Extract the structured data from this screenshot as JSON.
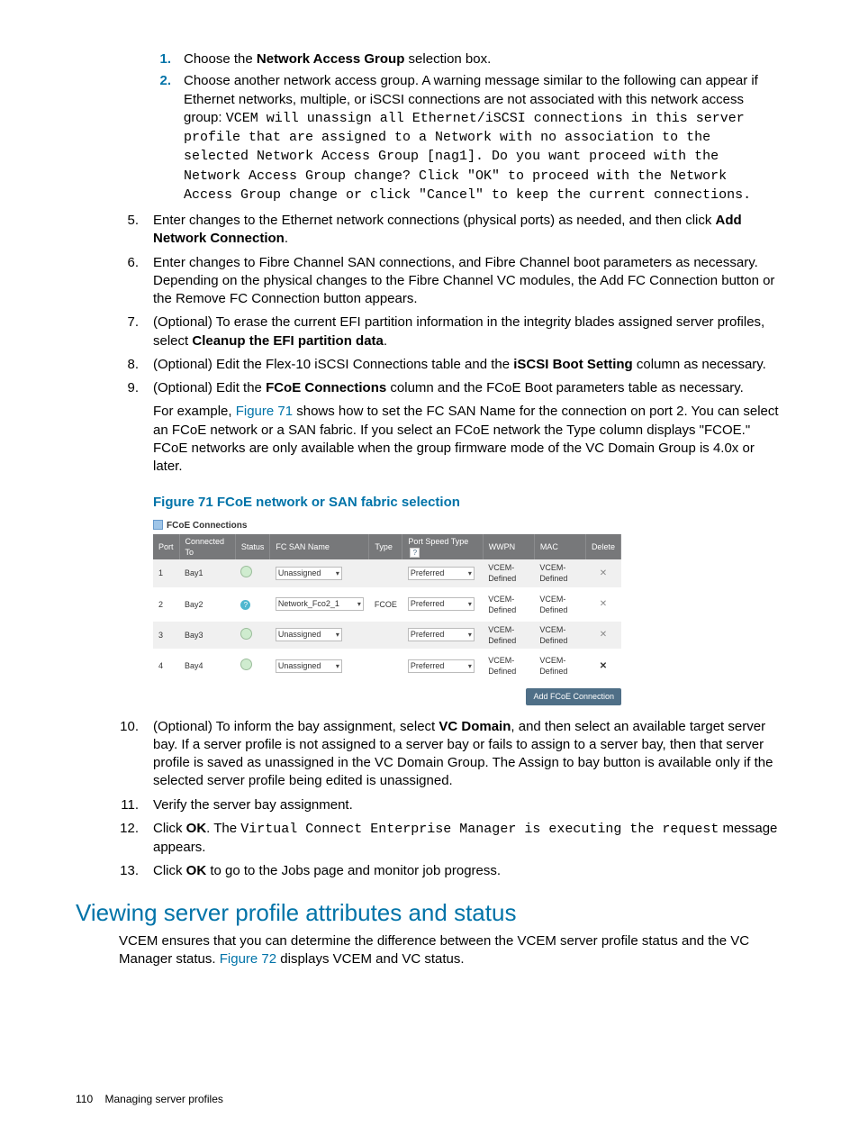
{
  "inner_steps": [
    {
      "n": "1.",
      "body": "Choose the <b>Network Access Group</b> selection box."
    },
    {
      "n": "2.",
      "body": "Choose another network access group. A warning message similar to the following can appear if Ethernet networks, multiple, or iSCSI connections are not associated with this network access group: <span class=\"mono\">VCEM will unassign all Ethernet/iSCSI connections in this server profile that are assigned to a Network with no association to the selected Network Access Group [nag1]. Do you want proceed with the Network Access Group change? Click \"OK\" to proceed with the Network Access Group change or click \"Cancel\" to keep the current connections.</span>"
    }
  ],
  "outer_steps_a": [
    {
      "n": "5.",
      "body": "Enter changes to the Ethernet network connections (physical ports) as needed, and then click <b>Add Network Connection</b>."
    },
    {
      "n": "6.",
      "body": "Enter changes to Fibre Channel SAN connections, and Fibre Channel boot parameters as necessary. Depending on the physical changes to the Fibre Channel VC modules, the Add FC Connection button or the Remove FC Connection button appears."
    },
    {
      "n": "7.",
      "body": "(Optional) To erase the current EFI partition information in the integrity blades assigned server profiles, select <b>Cleanup the EFI partition data</b>."
    },
    {
      "n": "8.",
      "body": "(Optional) Edit the Flex-10 iSCSI Connections table and the <b>iSCSI Boot Setting</b> column as necessary."
    },
    {
      "n": "9.",
      "body": "(Optional) Edit the <b>FCoE Connections</b> column and the FCoE Boot parameters table as necessary.<p style=\"margin-top:6px\">For example, <span class=\"link\">Figure 71</span> shows how to set the FC SAN Name for the connection on port 2. You can select an FCoE network or a SAN fabric. If you select an FCoE network the Type column displays \"FCOE.\" FCoE networks are only available when the group firmware mode of the VC Domain Group is 4.0x or later.</p>"
    }
  ],
  "outer_steps_b": [
    {
      "n": "10.",
      "body": "(Optional) To inform the bay assignment, select <b>VC Domain</b>, and then select an available target server bay. If a server profile is not assigned to a server bay or fails to assign to a server bay, then that server profile is saved as unassigned in the VC Domain Group. The Assign to bay button is available only if the selected server profile being edited is unassigned."
    },
    {
      "n": "11.",
      "body": "Verify the server bay assignment."
    },
    {
      "n": "12.",
      "body": "Click <b>OK</b>. The <span class=\"mono\">Virtual Connect Enterprise Manager is executing the request</span> message appears."
    },
    {
      "n": "13.",
      "body": "Click <b>OK</b> to go to the Jobs page and monitor job progress."
    }
  ],
  "figure": {
    "caption": "Figure 71 FCoE network or SAN fabric selection",
    "panel_title": "FCoE Connections",
    "columns": [
      "Port",
      "Connected To",
      "Status",
      "FC SAN Name",
      "Type",
      "Port Speed Type",
      "WWPN",
      "MAC",
      "Delete"
    ],
    "rows": [
      {
        "port": "1",
        "conn": "Bay1",
        "status": "ok",
        "san": "Unassigned",
        "san_wide": false,
        "type": "",
        "speed": "Preferred",
        "wwpn": "VCEM-Defined",
        "mac": "VCEM-Defined",
        "deletable": false
      },
      {
        "port": "2",
        "conn": "Bay2",
        "status": "info",
        "san": "Network_Fco2_1",
        "san_wide": true,
        "type": "FCOE",
        "speed": "Preferred",
        "wwpn": "VCEM-Defined",
        "mac": "VCEM-Defined",
        "deletable": false
      },
      {
        "port": "3",
        "conn": "Bay3",
        "status": "ok",
        "san": "Unassigned",
        "san_wide": false,
        "type": "",
        "speed": "Preferred",
        "wwpn": "VCEM-Defined",
        "mac": "VCEM-Defined",
        "deletable": false
      },
      {
        "port": "4",
        "conn": "Bay4",
        "status": "ok",
        "san": "Unassigned",
        "san_wide": false,
        "type": "",
        "speed": "Preferred",
        "wwpn": "VCEM-Defined",
        "mac": "VCEM-Defined",
        "deletable": true
      }
    ],
    "add_button": "Add FCoE Connection",
    "header_bg": "#77787a",
    "header_fg": "#ffffff",
    "row_alt_bg": "#f0f0f0",
    "btn_bg": "#4f6f87"
  },
  "section_heading": "Viewing server profile attributes and status",
  "section_intro": "VCEM ensures that you can determine the difference between the VCEM server profile status and the VC Manager status. <span class=\"link\">Figure 72</span> displays VCEM and VC status.",
  "footer": {
    "page": "110",
    "title": "Managing server profiles"
  },
  "colors": {
    "accent": "#0073a8"
  }
}
